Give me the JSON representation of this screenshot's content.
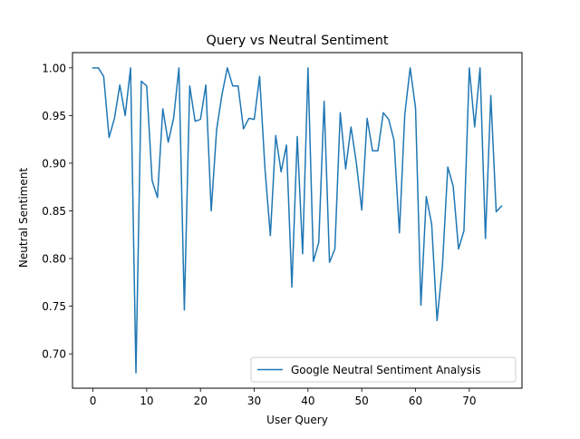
{
  "chart_data": {
    "type": "line",
    "title": "Query vs Neutral Sentiment",
    "xlabel": "User Query",
    "ylabel": "Neutral Sentiment",
    "xlim": [
      -3.8,
      79.8
    ],
    "ylim": [
      0.664,
      1.016
    ],
    "xticks": [
      0,
      10,
      20,
      30,
      40,
      50,
      60,
      70
    ],
    "xtick_labels": [
      "0",
      "10",
      "20",
      "30",
      "40",
      "50",
      "60",
      "70"
    ],
    "yticks": [
      0.7,
      0.75,
      0.8,
      0.85,
      0.9,
      0.95,
      1.0
    ],
    "ytick_labels": [
      "0.70",
      "0.75",
      "0.80",
      "0.85",
      "0.90",
      "0.95",
      "1.00"
    ],
    "grid": false,
    "legend_position": "lower right",
    "series": [
      {
        "name": "Google Neutral Sentiment Analysis",
        "color": "#1f77b4",
        "x": [
          0,
          1,
          2,
          3,
          4,
          5,
          6,
          7,
          8,
          9,
          10,
          11,
          12,
          13,
          14,
          15,
          16,
          17,
          18,
          19,
          20,
          21,
          22,
          23,
          24,
          25,
          26,
          27,
          28,
          29,
          30,
          31,
          32,
          33,
          34,
          35,
          36,
          37,
          38,
          39,
          40,
          41,
          42,
          43,
          44,
          45,
          46,
          47,
          48,
          49,
          50,
          51,
          52,
          53,
          54,
          55,
          56,
          57,
          58,
          59,
          60,
          61,
          62,
          63,
          64,
          65,
          66,
          67,
          68,
          69,
          70,
          71,
          72,
          73,
          74,
          75,
          76
        ],
        "y": [
          1.0,
          1.0,
          0.991,
          0.927,
          0.947,
          0.982,
          0.95,
          1.0,
          0.68,
          0.986,
          0.981,
          0.882,
          0.864,
          0.957,
          0.922,
          0.947,
          1.0,
          0.746,
          0.981,
          0.944,
          0.946,
          0.982,
          0.85,
          0.935,
          0.972,
          1.0,
          0.981,
          0.981,
          0.936,
          0.947,
          0.946,
          0.991,
          0.894,
          0.824,
          0.929,
          0.891,
          0.919,
          0.77,
          0.928,
          0.805,
          1.0,
          0.797,
          0.817,
          0.965,
          0.796,
          0.81,
          0.953,
          0.894,
          0.938,
          0.9,
          0.851,
          0.947,
          0.913,
          0.913,
          0.953,
          0.946,
          0.924,
          0.827,
          0.951,
          1.0,
          0.958,
          0.751,
          0.865,
          0.836,
          0.735,
          0.792,
          0.896,
          0.876,
          0.81,
          0.829,
          1.0,
          0.938,
          1.0,
          0.821,
          0.971,
          0.849,
          0.855
        ]
      }
    ]
  }
}
